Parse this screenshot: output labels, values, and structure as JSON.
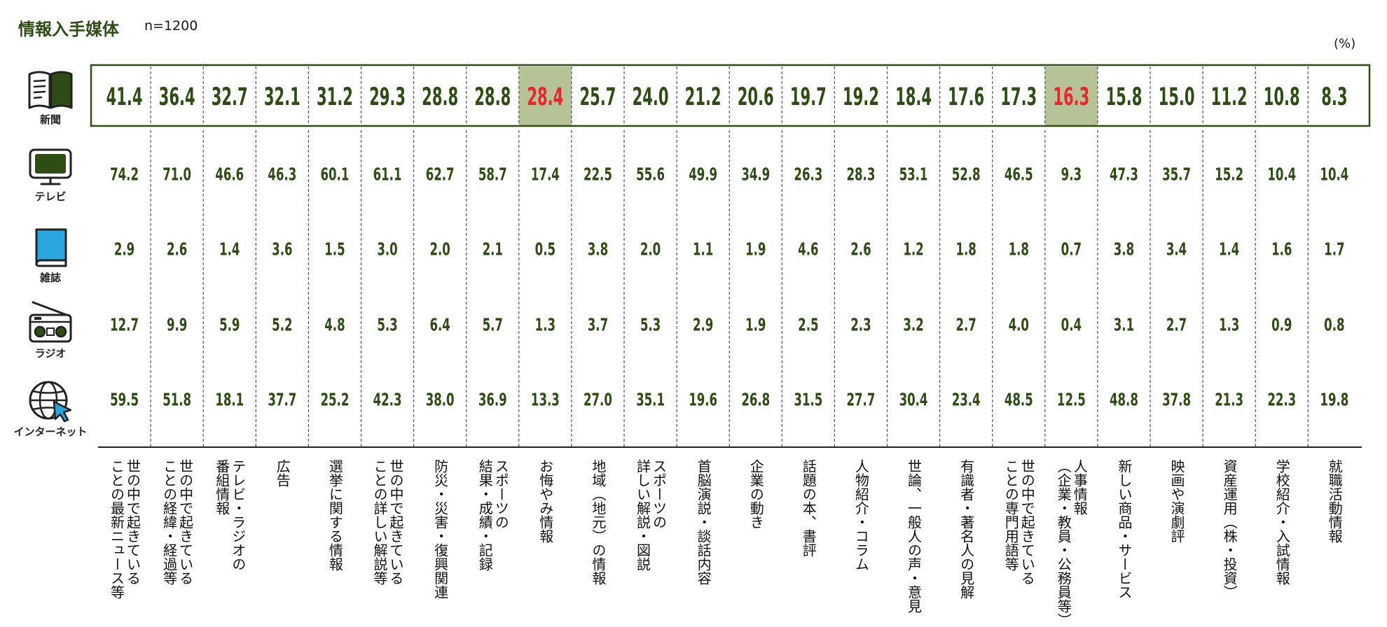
{
  "title": "情報入手媒体",
  "sample_size": "n=1200",
  "unit": "(%)",
  "colors": {
    "dark_green": "#2d4d14",
    "highlight_bg": "#b6c397",
    "highlight_text": "#e8262b",
    "icon_blue": "#2aa5df"
  },
  "media": [
    {
      "label": "新聞",
      "icon": "newspaper-icon"
    },
    {
      "label": "テレビ",
      "icon": "tv-icon"
    },
    {
      "label": "雑誌",
      "icon": "magazine-icon"
    },
    {
      "label": "ラジオ",
      "icon": "radio-icon"
    },
    {
      "label": "インターネット",
      "icon": "internet-icon"
    }
  ],
  "categories": [
    [
      "世の中で起きている",
      "ことの最新ニュース等"
    ],
    [
      "世の中で起きている",
      "ことの経緯・経過等"
    ],
    [
      "テレビ・ラジオの",
      "番組情報"
    ],
    [
      "広告"
    ],
    [
      "選挙に関する情報"
    ],
    [
      "世の中で起きている",
      "ことの詳しい解説等"
    ],
    [
      "防災・災害・復興関連"
    ],
    [
      "スポーツの",
      "結果・成績・記録"
    ],
    [
      "お悔やみ情報"
    ],
    [
      "地域（地元）の情報"
    ],
    [
      "スポーツの",
      "詳しい解説・図説"
    ],
    [
      "首脳演説・談話内容"
    ],
    [
      "企業の動き"
    ],
    [
      "話題の本、書評"
    ],
    [
      "人物紹介・コラム"
    ],
    [
      "世論、一般人の声・意見"
    ],
    [
      "有識者・著名人の見解"
    ],
    [
      "世の中で起きている",
      "ことの専門用語等"
    ],
    [
      "人事情報",
      "（企業・教員・公務員等）"
    ],
    [
      "新しい商品・サービス"
    ],
    [
      "映画や演劇評"
    ],
    [
      "資産運用（株・投資）"
    ],
    [
      "学校紹介・入試情報"
    ],
    [
      "就職活動情報"
    ]
  ],
  "chart_data": {
    "type": "table",
    "title": "情報入手媒体",
    "unit": "%",
    "highlight_columns": [
      8,
      18
    ],
    "series": [
      {
        "name": "新聞",
        "values": [
          "41.4",
          "36.4",
          "32.7",
          "32.1",
          "31.2",
          "29.3",
          "28.8",
          "28.8",
          "28.4",
          "25.7",
          "24.0",
          "21.2",
          "20.6",
          "19.7",
          "19.2",
          "18.4",
          "17.6",
          "17.3",
          "16.3",
          "15.8",
          "15.0",
          "11.2",
          "10.8",
          "8.3"
        ]
      },
      {
        "name": "テレビ",
        "values": [
          "74.2",
          "71.0",
          "46.6",
          "46.3",
          "60.1",
          "61.1",
          "62.7",
          "58.7",
          "17.4",
          "22.5",
          "55.6",
          "49.9",
          "34.9",
          "26.3",
          "28.3",
          "53.1",
          "52.8",
          "46.5",
          "9.3",
          "47.3",
          "35.7",
          "15.2",
          "10.4",
          "10.4"
        ]
      },
      {
        "name": "雑誌",
        "values": [
          "2.9",
          "2.6",
          "1.4",
          "3.6",
          "1.5",
          "3.0",
          "2.0",
          "2.1",
          "0.5",
          "3.8",
          "2.0",
          "1.1",
          "1.9",
          "4.6",
          "2.6",
          "1.2",
          "1.8",
          "1.8",
          "0.7",
          "3.8",
          "3.4",
          "1.4",
          "1.6",
          "1.7"
        ]
      },
      {
        "name": "ラジオ",
        "values": [
          "12.7",
          "9.9",
          "5.9",
          "5.2",
          "4.8",
          "5.3",
          "6.4",
          "5.7",
          "1.3",
          "3.7",
          "5.3",
          "2.9",
          "1.9",
          "2.5",
          "2.3",
          "3.2",
          "2.7",
          "4.0",
          "0.4",
          "3.1",
          "2.7",
          "1.3",
          "0.9",
          "0.8"
        ]
      },
      {
        "name": "インターネット",
        "values": [
          "59.5",
          "51.8",
          "18.1",
          "37.7",
          "25.2",
          "42.3",
          "38.0",
          "36.9",
          "13.3",
          "27.0",
          "35.1",
          "19.6",
          "26.8",
          "31.5",
          "27.7",
          "30.4",
          "23.4",
          "48.5",
          "12.5",
          "48.8",
          "37.8",
          "21.3",
          "22.3",
          "19.8"
        ]
      }
    ]
  }
}
